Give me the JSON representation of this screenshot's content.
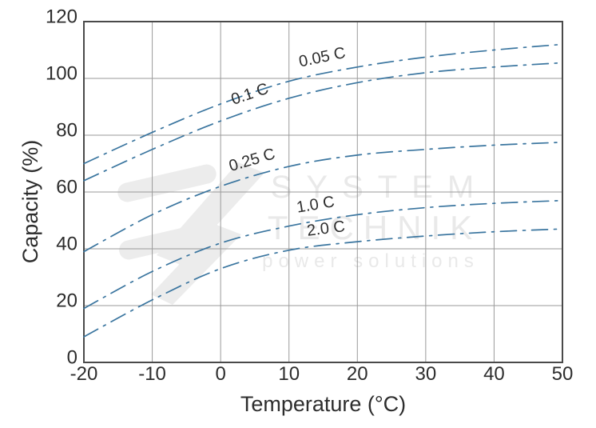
{
  "chart_data": {
    "type": "line",
    "title": "",
    "xlabel": "Temperature (°C)",
    "ylabel": "Capacity (%)",
    "xlim": [
      -20,
      50
    ],
    "ylim": [
      0,
      120
    ],
    "x_ticks": [
      -20,
      -10,
      0,
      10,
      20,
      30,
      40,
      50
    ],
    "y_ticks": [
      0,
      20,
      40,
      60,
      80,
      100,
      120
    ],
    "grid": true,
    "line_style": "dash-dot",
    "legend_position": "inline-labels",
    "x": [
      -20,
      -10,
      0,
      10,
      20,
      30,
      40,
      50
    ],
    "series": [
      {
        "name": "0.05 C",
        "values": [
          70,
          81,
          91,
          99,
          104,
          107.5,
          110,
          112
        ],
        "label_at_x": 15
      },
      {
        "name": "0.1 C",
        "values": [
          64,
          75,
          85,
          93,
          98.5,
          102,
          104,
          105.5
        ],
        "label_at_x": 4.5
      },
      {
        "name": "0.25 C",
        "values": [
          39,
          52,
          62,
          69,
          73,
          75,
          76.5,
          77.5
        ],
        "label_at_x": 4.8
      },
      {
        "name": "1.0 C",
        "values": [
          19,
          32,
          42,
          48,
          52,
          54.5,
          56,
          57
        ],
        "label_at_x": 14
      },
      {
        "name": "2.0 C",
        "values": [
          9,
          22,
          33,
          39.5,
          42.5,
          44.5,
          46,
          47
        ],
        "label_at_x": 15.5
      }
    ],
    "curve_color": "#3a759f",
    "grid_color": "#9a9a9a",
    "axis_color": "#4a4a4a",
    "text_color": "#2d2d2d"
  },
  "watermark": {
    "line1": "SYSTEM",
    "line2": "TECHNIK",
    "line3": "power solutions",
    "text_color": "#e9e9e9",
    "logo_color": "#ececec"
  }
}
